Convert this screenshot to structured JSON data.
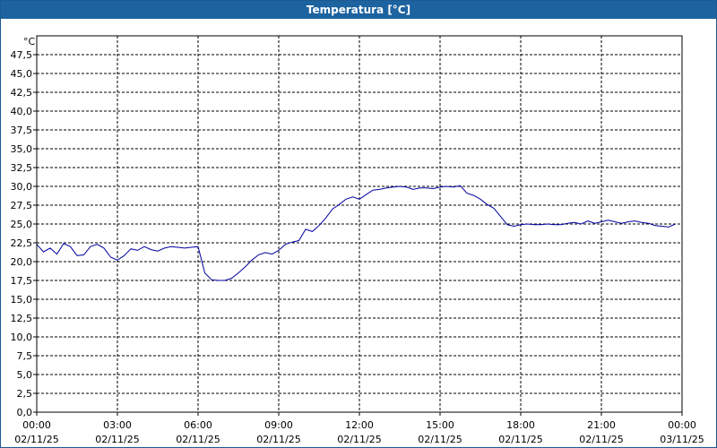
{
  "window": {
    "title": "Temperatura [°C]"
  },
  "chart_data": {
    "type": "line",
    "title": "Temperatura [°C]",
    "ylabel": "°C",
    "xlabel": "",
    "ylim": [
      0,
      50
    ],
    "y_ticks": [
      "0,0",
      "2,5",
      "5,0",
      "7,5",
      "10,0",
      "12,5",
      "15,0",
      "17,5",
      "20,0",
      "22,5",
      "25,0",
      "27,5",
      "30,0",
      "32,5",
      "35,0",
      "37,5",
      "40,0",
      "42,5",
      "45,0",
      "47,5"
    ],
    "x_ticks": [
      {
        "time": "00:00",
        "date": "02/11/25"
      },
      {
        "time": "03:00",
        "date": "02/11/25"
      },
      {
        "time": "06:00",
        "date": "02/11/25"
      },
      {
        "time": "09:00",
        "date": "02/11/25"
      },
      {
        "time": "12:00",
        "date": "02/11/25"
      },
      {
        "time": "15:00",
        "date": "02/11/25"
      },
      {
        "time": "18:00",
        "date": "02/11/25"
      },
      {
        "time": "21:00",
        "date": "02/11/25"
      },
      {
        "time": "00:00",
        "date": "03/11/25"
      }
    ],
    "grid": true,
    "series_color": "#0000a0",
    "series": [
      {
        "x": [
          "00:00",
          "00:15",
          "00:30",
          "00:45",
          "01:00",
          "01:15",
          "01:30",
          "01:45",
          "02:00",
          "02:15",
          "02:30",
          "02:45",
          "03:00",
          "03:15",
          "03:30",
          "03:45",
          "04:00",
          "04:15",
          "04:30",
          "04:45",
          "05:00",
          "05:15",
          "05:30",
          "05:45",
          "06:00",
          "06:15",
          "06:30",
          "06:45",
          "07:00",
          "07:15",
          "07:30",
          "07:45",
          "08:00",
          "08:15",
          "08:30",
          "08:45",
          "09:00",
          "09:15",
          "09:30",
          "09:45",
          "10:00",
          "10:15",
          "10:30",
          "10:45",
          "11:00",
          "11:15",
          "11:30",
          "11:45",
          "12:00",
          "12:15",
          "12:30",
          "12:45",
          "13:00",
          "13:15",
          "13:30",
          "13:45",
          "14:00",
          "14:15",
          "14:30",
          "14:45",
          "15:00",
          "15:15",
          "15:30",
          "15:45",
          "16:00",
          "16:15",
          "16:30",
          "16:45",
          "17:00",
          "17:15",
          "17:30",
          "17:45",
          "18:00",
          "18:15",
          "18:30",
          "18:45",
          "19:00",
          "19:15",
          "19:30",
          "19:45",
          "20:00",
          "20:15",
          "20:30",
          "20:45",
          "21:00",
          "21:15",
          "21:30",
          "21:45",
          "22:00",
          "22:15",
          "22:30",
          "22:45",
          "23:00",
          "23:15",
          "23:30",
          "23:45"
        ],
        "values": [
          22.3,
          21.3,
          21.8,
          21.0,
          22.4,
          22.0,
          20.8,
          20.9,
          22.0,
          22.3,
          21.8,
          20.6,
          20.2,
          20.8,
          21.7,
          21.5,
          22.0,
          21.6,
          21.4,
          21.8,
          22.0,
          21.9,
          21.8,
          21.9,
          22.0,
          18.5,
          17.6,
          17.5,
          17.5,
          17.8,
          18.5,
          19.3,
          20.2,
          20.9,
          21.2,
          21.0,
          21.5,
          22.3,
          22.6,
          22.8,
          24.3,
          24.0,
          24.8,
          25.8,
          27.0,
          27.6,
          28.3,
          28.6,
          28.3,
          28.9,
          29.5,
          29.6,
          29.8,
          29.9,
          30.0,
          29.9,
          29.6,
          29.8,
          29.8,
          29.7,
          29.9,
          30.0,
          29.9,
          30.1,
          29.1,
          28.8,
          28.3,
          27.6,
          27.1,
          26.0,
          24.9,
          24.7,
          24.9,
          25.0,
          24.9,
          24.9,
          25.0,
          24.9,
          24.9,
          25.1,
          25.2,
          25.0,
          25.4,
          25.1,
          25.3,
          25.5,
          25.3,
          25.1,
          25.3,
          25.4,
          25.2,
          25.1,
          24.8,
          24.7,
          24.6,
          25.0
        ]
      }
    ]
  }
}
